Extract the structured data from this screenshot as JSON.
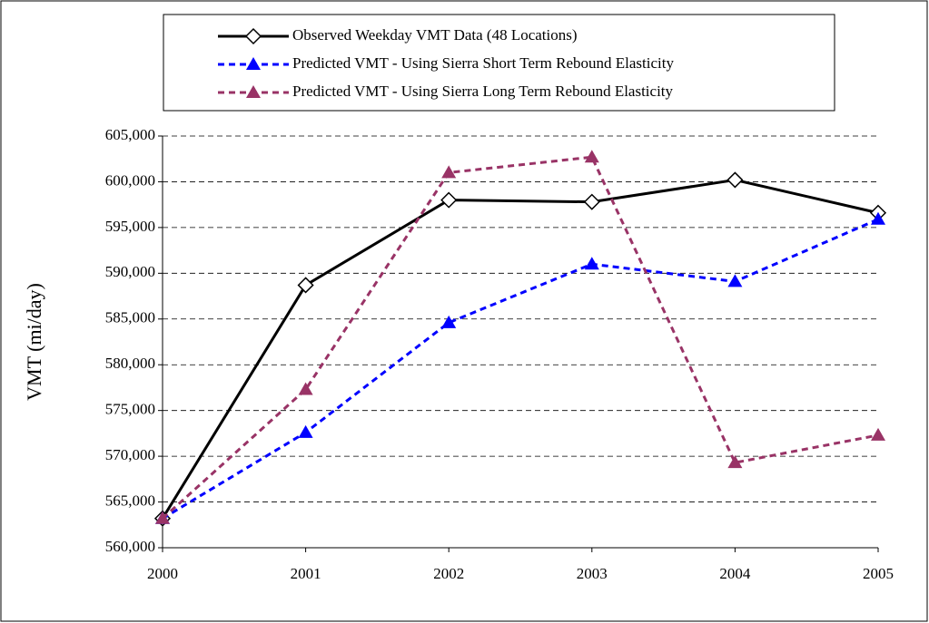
{
  "chart_data": {
    "type": "line",
    "y_label": "VMT (mi/day)",
    "categories": [
      "2000",
      "2001",
      "2002",
      "2003",
      "2004",
      "2005"
    ],
    "series": [
      {
        "name": "Observed Weekday VMT Data (48 Locations)",
        "color": "#000000",
        "style": "solid",
        "marker": "diamond",
        "values": [
          563200,
          588700,
          598000,
          597800,
          600200,
          596600
        ]
      },
      {
        "name": "Predicted VMT - Using Sierra Short Term Rebound Elasticity",
        "color": "#0000ff",
        "style": "dashed",
        "marker": "triangle",
        "values": [
          563200,
          572600,
          584600,
          591000,
          589100,
          595900
        ]
      },
      {
        "name": "Predicted VMT - Using Sierra Long Term Rebound Elasticity",
        "color": "#993366",
        "style": "dashed",
        "marker": "triangle",
        "values": [
          563200,
          577300,
          601000,
          602700,
          569300,
          572300
        ]
      }
    ],
    "ylim": [
      560000,
      605000
    ],
    "yticks": [
      {
        "value": 560000,
        "label": "560,000"
      },
      {
        "value": 565000,
        "label": "565,000"
      },
      {
        "value": 570000,
        "label": "570,000"
      },
      {
        "value": 575000,
        "label": "575,000"
      },
      {
        "value": 580000,
        "label": "580,000"
      },
      {
        "value": 585000,
        "label": "585,000"
      },
      {
        "value": 590000,
        "label": "590,000"
      },
      {
        "value": 595000,
        "label": "595,000"
      },
      {
        "value": 600000,
        "label": "600,000"
      },
      {
        "value": 605000,
        "label": "605,000"
      }
    ],
    "grid": true,
    "legend": "top"
  }
}
